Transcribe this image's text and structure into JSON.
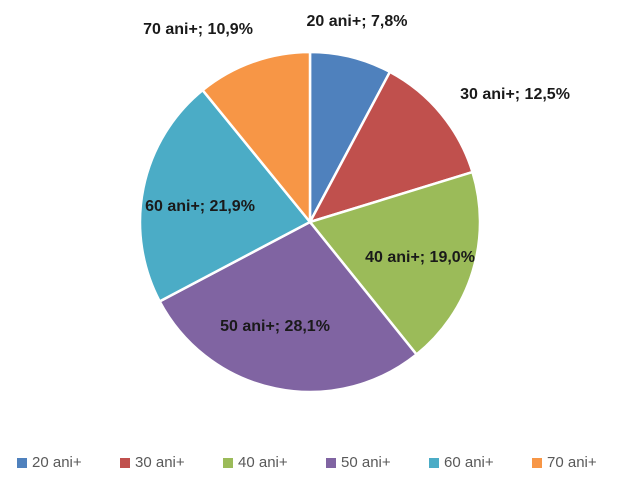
{
  "chart_data": {
    "type": "pie",
    "categories": [
      "20 ani+",
      "30 ani+",
      "40 ani+",
      "50 ani+",
      "60 ani+",
      "70 ani+"
    ],
    "values": [
      7.8,
      12.5,
      19.0,
      28.1,
      21.9,
      10.9
    ],
    "value_labels": [
      "20 ani+; 7,8%",
      "30 ani+; 12,5%",
      "40 ani+; 19,0%",
      "50 ani+; 28,1%",
      "60 ani+; 21,9%",
      "70 ani+; 10,9%"
    ],
    "colors": [
      "#4f81bd",
      "#c0504d",
      "#9bbb59",
      "#8064a2",
      "#4bacc6",
      "#f79646"
    ],
    "legend": "bottom"
  }
}
